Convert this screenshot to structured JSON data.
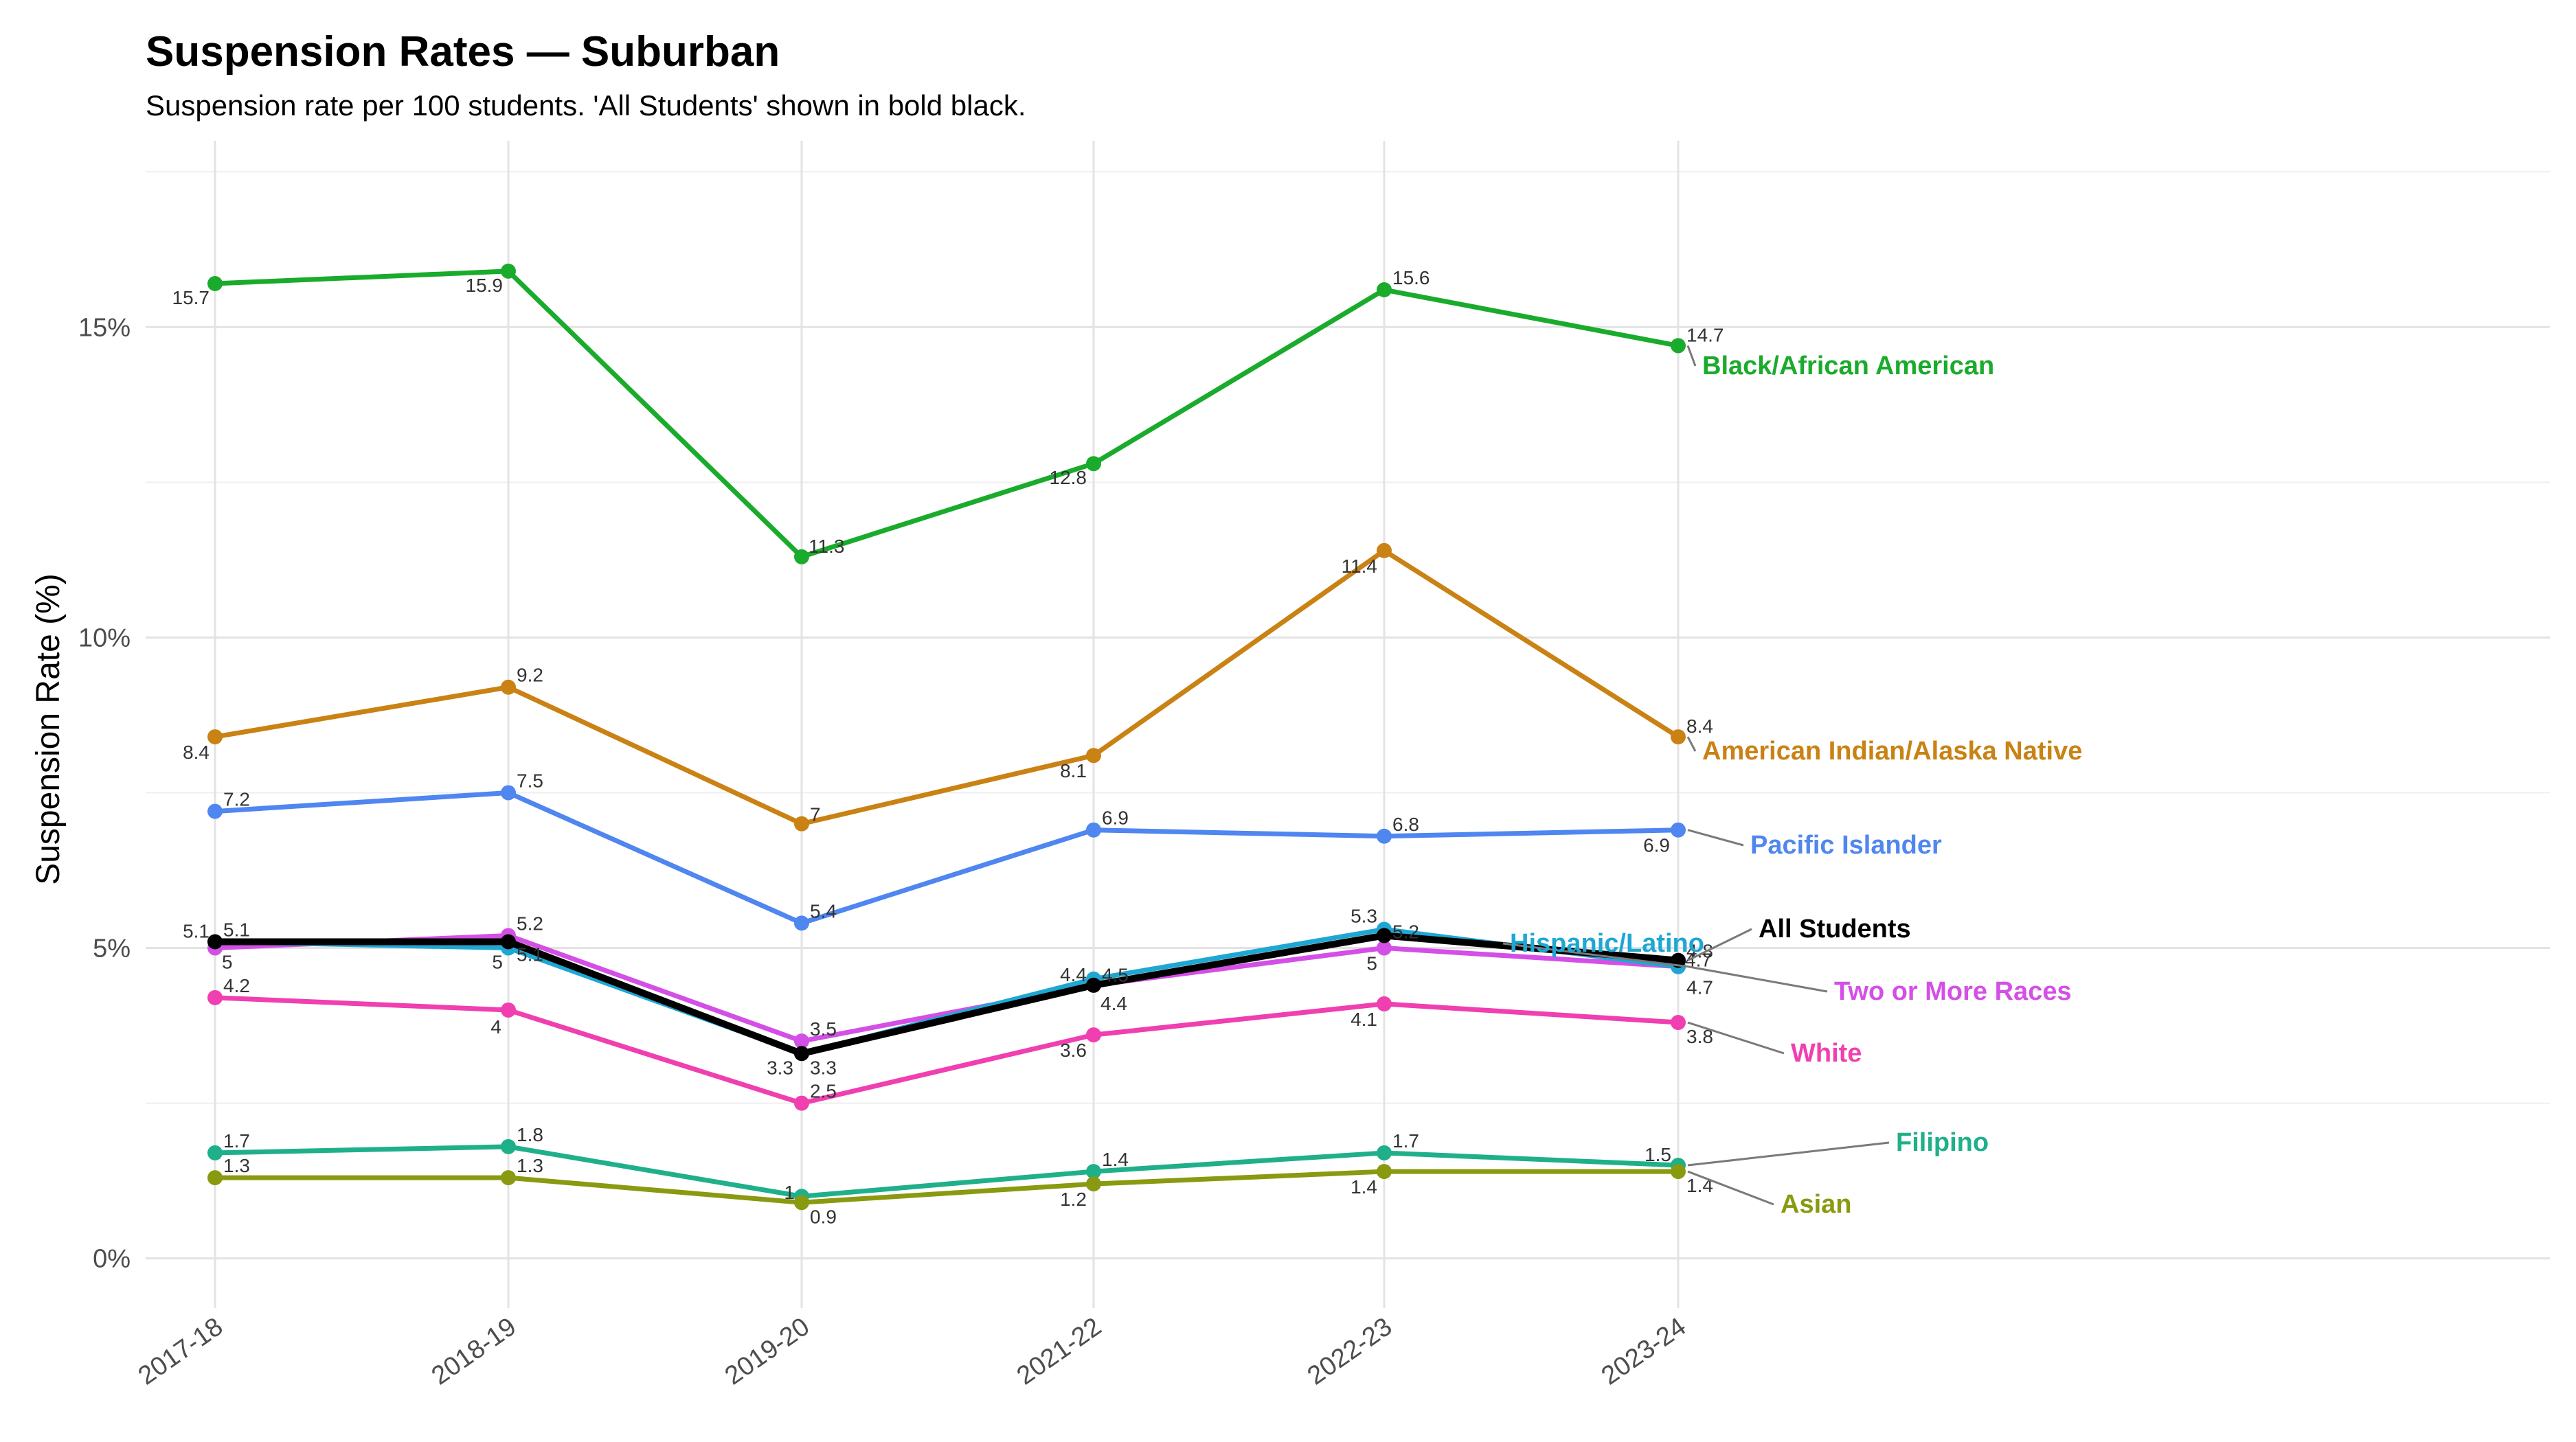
{
  "chart_data": {
    "type": "line",
    "title": "Suspension Rates — Suburban",
    "subtitle": "Suspension rate per 100 students. 'All Students' shown in bold black.",
    "xlabel": "",
    "ylabel": "Suspension Rate (%)",
    "categories": [
      "2017-18",
      "2018-19",
      "2019-20",
      "2021-22",
      "2022-23",
      "2023-24"
    ],
    "ylim": [
      -0.8,
      18
    ],
    "yticks": [
      0,
      5,
      10,
      15
    ],
    "ytick_labels": [
      "0%",
      "5%",
      "10%",
      "15%"
    ],
    "grid": true,
    "legend": "direct labels at right end of lines",
    "series": [
      {
        "name": "Black/African American",
        "color": "#1aab2c",
        "values": [
          15.7,
          15.9,
          11.3,
          12.8,
          15.6,
          14.7
        ],
        "value_labels": [
          "15.7",
          "15.9",
          "11.3",
          "12.8",
          "15.6",
          "14.7"
        ]
      },
      {
        "name": "American Indian/Alaska Native",
        "color": "#c98213",
        "values": [
          8.4,
          9.2,
          7.0,
          8.1,
          11.4,
          8.4
        ],
        "value_labels": [
          "8.4",
          "9.2",
          "7",
          "8.1",
          "11.4",
          "8.4"
        ]
      },
      {
        "name": "Pacific Islander",
        "color": "#4f86f0",
        "values": [
          7.2,
          7.5,
          5.4,
          6.9,
          6.8,
          6.9
        ],
        "value_labels": [
          "7.2",
          "7.5",
          "5.4",
          "6.9",
          "6.8",
          "6.9"
        ]
      },
      {
        "name": "Hispanic/Latino",
        "color": "#1fa7d4",
        "values": [
          5.1,
          5.0,
          3.3,
          4.5,
          5.3,
          4.7
        ],
        "value_labels": [
          "5.1",
          "5",
          "3.3",
          "4.5",
          "5.3",
          "4.7"
        ]
      },
      {
        "name": "All Students",
        "color": "#000000",
        "values": [
          5.1,
          5.1,
          3.3,
          4.4,
          5.2,
          4.8
        ],
        "value_labels": [
          "5.1",
          "5.1",
          "3.3",
          "4.4",
          "5.2",
          "4.8"
        ]
      },
      {
        "name": "Two or More Races",
        "color": "#d44fe6",
        "values": [
          5.0,
          5.2,
          3.5,
          4.4,
          5.0,
          4.7
        ],
        "value_labels": [
          "5",
          "5.2",
          "3.5",
          "4.4",
          "5",
          "4.7"
        ]
      },
      {
        "name": "White",
        "color": "#f03fb0",
        "values": [
          4.2,
          4.0,
          2.5,
          3.6,
          4.1,
          3.8
        ],
        "value_labels": [
          "4.2",
          "4",
          "2.5",
          "3.6",
          "4.1",
          "3.8"
        ]
      },
      {
        "name": "Filipino",
        "color": "#1fb08a",
        "values": [
          1.7,
          1.8,
          1.0,
          1.4,
          1.7,
          1.5
        ],
        "value_labels": [
          "1.7",
          "1.8",
          "1",
          "1.4",
          "1.7",
          "1.5"
        ]
      },
      {
        "name": "Asian",
        "color": "#8a9a10",
        "values": [
          1.3,
          1.3,
          0.9,
          1.2,
          1.4,
          1.4
        ],
        "value_labels": [
          "1.3",
          "1.3",
          "0.9",
          "1.2",
          "1.4",
          "1.4"
        ]
      }
    ]
  }
}
